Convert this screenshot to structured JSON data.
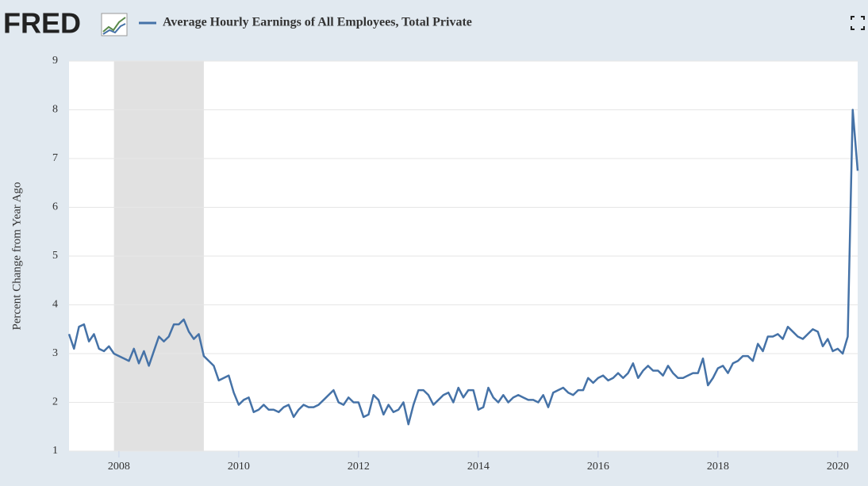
{
  "chart_data": {
    "type": "line",
    "logo": "FRED",
    "title": "Average Hourly Earnings of All Employees, Total Private",
    "ylabel": "Percent Change from Year Ago",
    "x": [
      2007.167,
      2007.25,
      2007.333,
      2007.417,
      2007.5,
      2007.583,
      2007.667,
      2007.75,
      2007.833,
      2007.917,
      2008,
      2008.083,
      2008.167,
      2008.25,
      2008.333,
      2008.417,
      2008.5,
      2008.583,
      2008.667,
      2008.75,
      2008.833,
      2008.917,
      2009,
      2009.083,
      2009.167,
      2009.25,
      2009.333,
      2009.417,
      2009.5,
      2009.583,
      2009.667,
      2009.75,
      2009.833,
      2009.917,
      2010,
      2010.083,
      2010.167,
      2010.25,
      2010.333,
      2010.417,
      2010.5,
      2010.583,
      2010.667,
      2010.75,
      2010.833,
      2010.917,
      2011,
      2011.083,
      2011.167,
      2011.25,
      2011.333,
      2011.417,
      2011.5,
      2011.583,
      2011.667,
      2011.75,
      2011.833,
      2011.917,
      2012,
      2012.083,
      2012.167,
      2012.25,
      2012.333,
      2012.417,
      2012.5,
      2012.583,
      2012.667,
      2012.75,
      2012.833,
      2012.917,
      2013,
      2013.083,
      2013.167,
      2013.25,
      2013.333,
      2013.417,
      2013.5,
      2013.583,
      2013.667,
      2013.75,
      2013.833,
      2013.917,
      2014,
      2014.083,
      2014.167,
      2014.25,
      2014.333,
      2014.417,
      2014.5,
      2014.583,
      2014.667,
      2014.75,
      2014.833,
      2014.917,
      2015,
      2015.083,
      2015.167,
      2015.25,
      2015.333,
      2015.417,
      2015.5,
      2015.583,
      2015.667,
      2015.75,
      2015.833,
      2015.917,
      2016,
      2016.083,
      2016.167,
      2016.25,
      2016.333,
      2016.417,
      2016.5,
      2016.583,
      2016.667,
      2016.75,
      2016.833,
      2016.917,
      2017,
      2017.083,
      2017.167,
      2017.25,
      2017.333,
      2017.417,
      2017.5,
      2017.583,
      2017.667,
      2017.75,
      2017.833,
      2017.917,
      2018,
      2018.083,
      2018.167,
      2018.25,
      2018.333,
      2018.417,
      2018.5,
      2018.583,
      2018.667,
      2018.75,
      2018.833,
      2018.917,
      2019,
      2019.083,
      2019.167,
      2019.25,
      2019.333,
      2019.417,
      2019.5,
      2019.583,
      2019.667,
      2019.75,
      2019.833,
      2019.917,
      2020,
      2020.083,
      2020.167,
      2020.25,
      2020.333
    ],
    "series": [
      {
        "name": "Average Hourly Earnings of All Employees, Total Private",
        "color": "#4572a7",
        "values": [
          3.4,
          3.1,
          3.55,
          3.6,
          3.25,
          3.4,
          3.1,
          3.05,
          3.15,
          3.0,
          2.95,
          2.9,
          2.85,
          3.1,
          2.8,
          3.05,
          2.75,
          3.05,
          3.35,
          3.25,
          3.35,
          3.6,
          3.6,
          3.7,
          3.45,
          3.3,
          3.4,
          2.95,
          2.85,
          2.75,
          2.45,
          2.5,
          2.55,
          2.2,
          1.95,
          2.05,
          2.1,
          1.8,
          1.85,
          1.95,
          1.85,
          1.85,
          1.8,
          1.9,
          1.95,
          1.7,
          1.85,
          1.95,
          1.9,
          1.9,
          1.95,
          2.05,
          2.15,
          2.25,
          2.0,
          1.95,
          2.1,
          2.0,
          2.0,
          1.7,
          1.75,
          2.15,
          2.05,
          1.75,
          1.95,
          1.8,
          1.85,
          2.0,
          1.55,
          1.95,
          2.25,
          2.25,
          2.15,
          1.95,
          2.05,
          2.15,
          2.2,
          2.0,
          2.3,
          2.1,
          2.25,
          2.25,
          1.85,
          1.9,
          2.3,
          2.1,
          2.0,
          2.15,
          2.0,
          2.1,
          2.15,
          2.1,
          2.05,
          2.05,
          2.0,
          2.15,
          1.9,
          2.2,
          2.25,
          2.3,
          2.2,
          2.15,
          2.25,
          2.25,
          2.5,
          2.4,
          2.5,
          2.55,
          2.45,
          2.5,
          2.6,
          2.5,
          2.6,
          2.8,
          2.5,
          2.65,
          2.75,
          2.65,
          2.65,
          2.55,
          2.75,
          2.6,
          2.5,
          2.5,
          2.55,
          2.6,
          2.6,
          2.9,
          2.35,
          2.5,
          2.7,
          2.75,
          2.6,
          2.8,
          2.85,
          2.95,
          2.95,
          2.85,
          3.2,
          3.05,
          3.35,
          3.35,
          3.4,
          3.3,
          3.55,
          3.45,
          3.35,
          3.3,
          3.4,
          3.5,
          3.45,
          3.15,
          3.3,
          3.05,
          3.1,
          3.0,
          3.35,
          8.0,
          6.75
        ]
      }
    ],
    "recessions": [
      [
        2007.917,
        2009.417
      ]
    ],
    "recession_color": "#e1e1e1",
    "xlim": [
      2007.167,
      2020.333
    ],
    "xticks": [
      2008,
      2010,
      2012,
      2014,
      2016,
      2018,
      2020
    ],
    "ylim": [
      1,
      9
    ],
    "yticks": [
      1,
      2,
      3,
      4,
      5,
      6,
      7,
      8,
      9
    ],
    "grid": true
  }
}
